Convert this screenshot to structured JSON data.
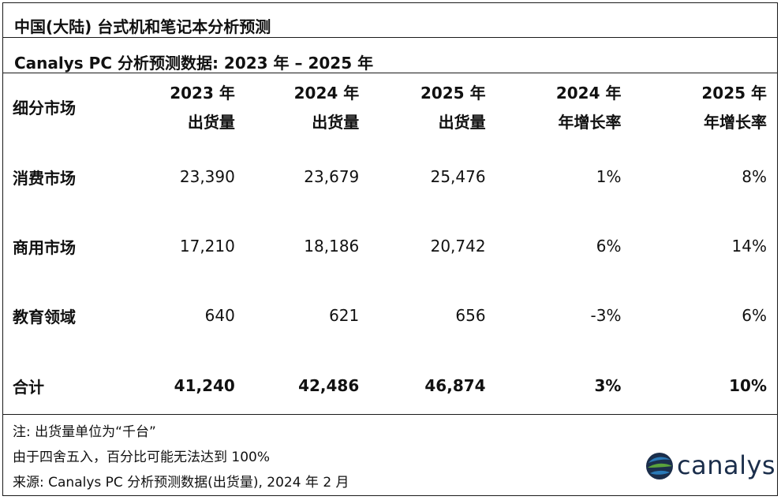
{
  "title": "中国(大陆) 台式机和笔记本分析预测",
  "subtitle": "Canalys PC 分析预测数据: 2023 年 – 2025 年",
  "table": {
    "headers": [
      {
        "line1": "细分市场",
        "line2": ""
      },
      {
        "line1": "2023 年",
        "line2": "出货量"
      },
      {
        "line1": "2024 年",
        "line2": "出货量"
      },
      {
        "line1": "2025 年",
        "line2": "出货量"
      },
      {
        "line1": "2024 年",
        "line2": "年增长率"
      },
      {
        "line1": "2025 年",
        "line2": "年增长率"
      }
    ],
    "rows": [
      [
        "消费市场",
        "23,390",
        "23,679",
        "25,476",
        "1%",
        "8%"
      ],
      [
        "商用市场",
        "17,210",
        "18,186",
        "20,742",
        "6%",
        "14%"
      ],
      [
        "教育领域",
        "640",
        "621",
        "656",
        "-3%",
        "6%"
      ]
    ],
    "total": [
      "合计",
      "41,240",
      "42,486",
      "46,874",
      "3%",
      "10%"
    ]
  },
  "notes": [
    "注: 出货量单位为“千台”",
    "由于四舍五入，百分比可能无法达到 100%",
    "来源: Canalys PC 分析预测数据(出货量), 2024 年 2 月"
  ],
  "logo": {
    "wordmark": "canalys",
    "colors": {
      "dark": "#1b2e4b",
      "blue": "#2a7ab8",
      "green": "#5aa23c"
    }
  }
}
